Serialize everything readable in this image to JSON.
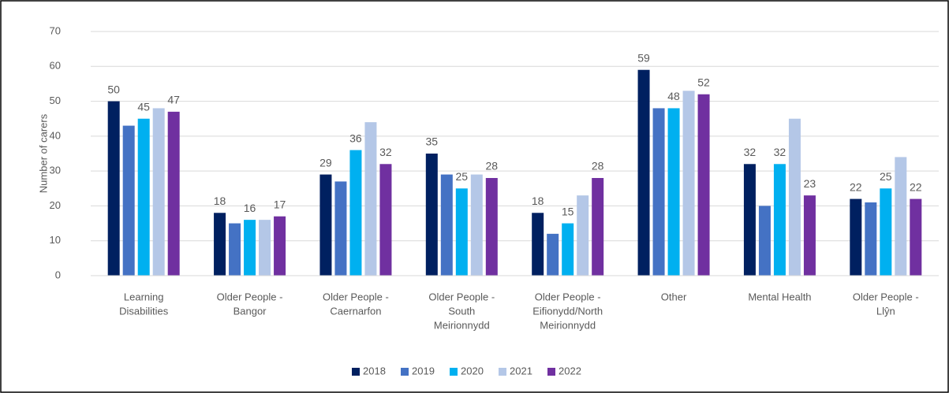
{
  "chart_data": {
    "type": "bar",
    "y_label": "Number of carers",
    "categories": [
      [
        "Learning",
        "Disabilities"
      ],
      [
        "Older People -",
        "Bangor"
      ],
      [
        "Older People -",
        "Caernarfon"
      ],
      [
        "Older People -",
        "South",
        "Meirionnydd"
      ],
      [
        "Older People -",
        "Eifionydd/North",
        "Meirionnydd"
      ],
      [
        "Other"
      ],
      [
        "Mental Health"
      ],
      [
        "Older People -",
        "Llŷn"
      ]
    ],
    "series": [
      {
        "name": "2018",
        "color": "#002060",
        "data_labels": true,
        "values": [
          50,
          18,
          29,
          35,
          18,
          59,
          32,
          22
        ]
      },
      {
        "name": "2019",
        "color": "#4472c4",
        "data_labels": false,
        "values": [
          43,
          15,
          27,
          29,
          12,
          48,
          20,
          21
        ]
      },
      {
        "name": "2020",
        "color": "#00b0f0",
        "data_labels": true,
        "values": [
          45,
          16,
          36,
          25,
          15,
          48,
          32,
          25
        ]
      },
      {
        "name": "2021",
        "color": "#b4c7e7",
        "data_labels": false,
        "values": [
          48,
          16,
          44,
          29,
          23,
          53,
          45,
          34
        ]
      },
      {
        "name": "2022",
        "color": "#7030a0",
        "data_labels": true,
        "values": [
          47,
          17,
          32,
          28,
          28,
          52,
          23,
          22
        ]
      }
    ],
    "ylim": [
      0,
      70
    ],
    "yticks": [
      0,
      10,
      20,
      30,
      40,
      50,
      60,
      70
    ],
    "grid": true,
    "legend": "bottom"
  }
}
